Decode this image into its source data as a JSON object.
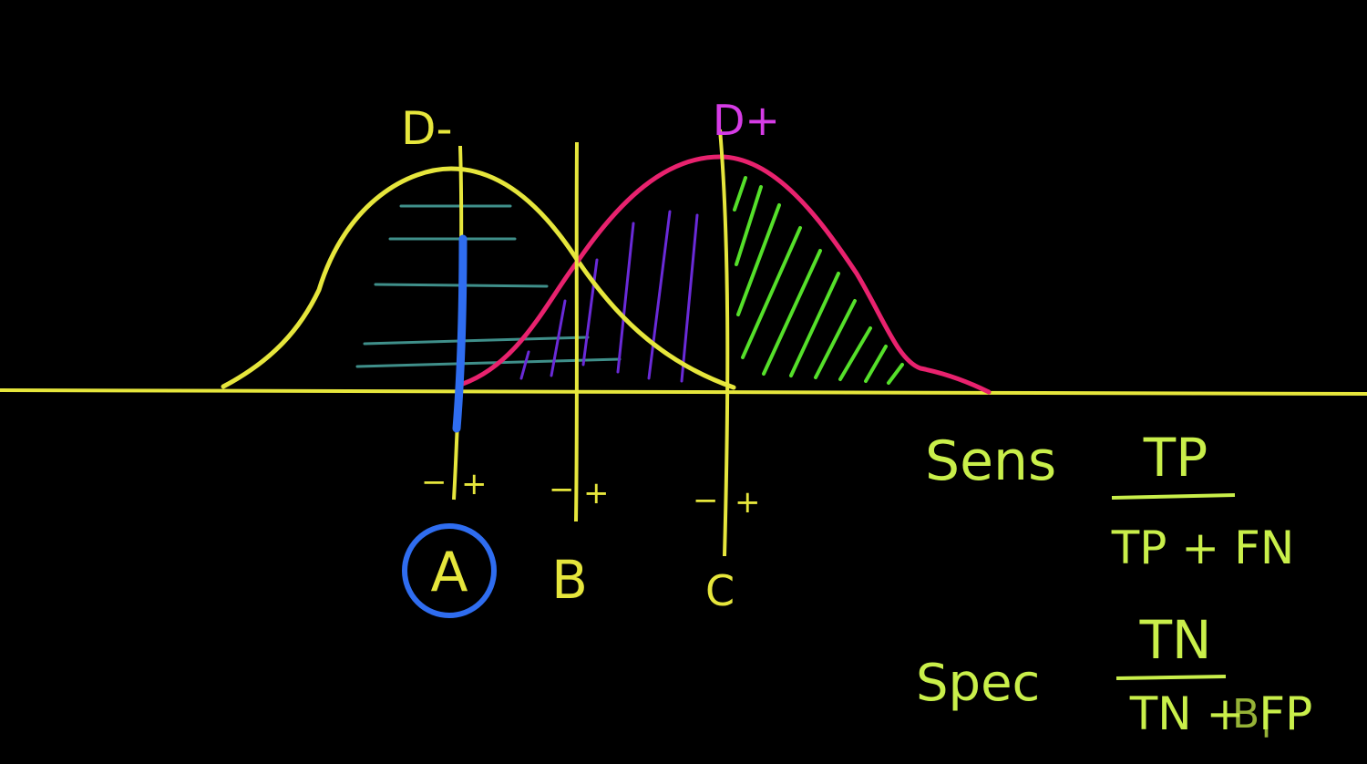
{
  "colors": {
    "background": "#000000",
    "yellow": "#e6e63c",
    "magenta": "#e8226e",
    "purple_label": "#d63ce6",
    "green": "#55e02a",
    "lime_text": "#c9ef4a",
    "blue": "#2f6df0",
    "teal_hatch": "#3f8f8a",
    "purple_hatch": "#6a2ad8"
  },
  "curves": {
    "negative_label": "D-",
    "positive_label": "D+"
  },
  "cutoffs": [
    {
      "label": "A",
      "minus": "−",
      "plus": "+",
      "selected": true
    },
    {
      "label": "B",
      "minus": "−",
      "plus": "+",
      "selected": false
    },
    {
      "label": "C",
      "minus": "−",
      "plus": "+",
      "selected": false
    }
  ],
  "formulas": {
    "sens": {
      "label": "Sens",
      "numerator": "TP",
      "denominator": "TP + FN"
    },
    "spec": {
      "label": "Spec",
      "numerator": "TN",
      "denominator": "TN + FP",
      "scribble": "B|"
    }
  }
}
